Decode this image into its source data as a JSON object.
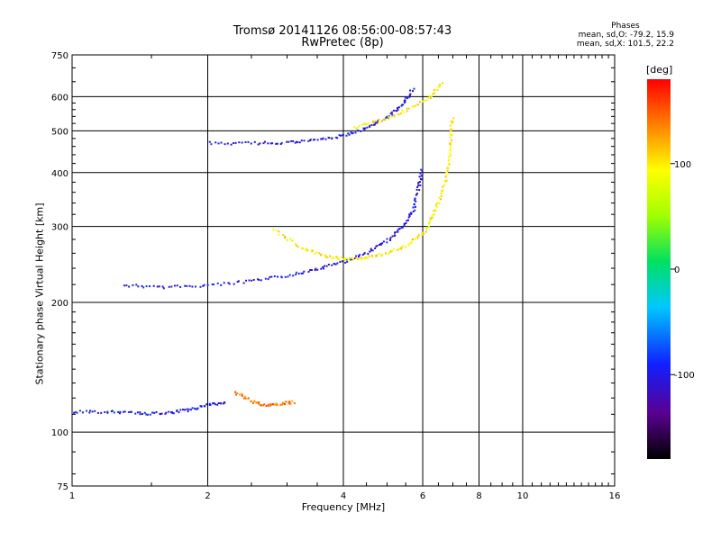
{
  "title_line1": "Tromsø 20141126 08:56:00-08:57:43",
  "title_line2": "RwPretec (8p)",
  "stats": {
    "heading": "Phases",
    "line1": "mean, sd,O: -79.2, 15.9",
    "line2": "mean, sd,X: 101.5, 22.2"
  },
  "chart_data": {
    "type": "scatter",
    "xlabel": "Frequency [MHz]",
    "ylabel": "Stationary phase Virtual Height [km]",
    "xscale": "log",
    "yscale": "log",
    "xlim": [
      1,
      16
    ],
    "ylim": [
      75,
      750
    ],
    "xticks": [
      1,
      2,
      4,
      6,
      8,
      10,
      16
    ],
    "xtick_labels": [
      "1",
      "2",
      "4",
      "6",
      "8",
      "10",
      "16"
    ],
    "yticks": [
      75,
      100,
      200,
      300,
      400,
      500,
      600,
      750
    ],
    "ytick_labels": [
      "75",
      "100",
      "200",
      "300",
      "400",
      "500",
      "600",
      "750"
    ],
    "grid": true,
    "colorbar": {
      "title": "[deg]",
      "range": [
        -180,
        180
      ],
      "ticks": [
        100,
        0,
        -100
      ],
      "tick_labels": [
        "100",
        "0",
        "-100"
      ]
    },
    "traces": [
      {
        "desc": "O-mode F2 trace",
        "phase": -100,
        "x": [
          1.3,
          1.6,
          2.0,
          2.5,
          3.0,
          3.5,
          4.0,
          4.5,
          5.0,
          5.4,
          5.7,
          5.85,
          5.95
        ],
        "y": [
          220,
          218,
          220,
          225,
          232,
          240,
          250,
          262,
          280,
          300,
          330,
          370,
          410
        ]
      },
      {
        "desc": "O-mode F2 second hop",
        "phase": -100,
        "x": [
          2.0,
          2.5,
          3.0,
          3.5,
          4.0,
          4.5,
          5.0,
          5.4,
          5.7
        ],
        "y": [
          470,
          470,
          472,
          478,
          490,
          510,
          540,
          580,
          630
        ]
      },
      {
        "desc": "X-mode F2 trace",
        "phase": 100,
        "x": [
          2.8,
          3.2,
          3.6,
          4.0,
          4.5,
          5.0,
          5.5,
          6.0,
          6.3,
          6.6,
          6.8,
          6.9,
          6.95
        ],
        "y": [
          295,
          270,
          258,
          253,
          255,
          262,
          272,
          290,
          320,
          360,
          410,
          470,
          540
        ]
      },
      {
        "desc": "X-mode second hop",
        "phase": 100,
        "x": [
          4.2,
          4.8,
          5.5,
          6.2,
          6.6
        ],
        "y": [
          510,
          530,
          560,
          600,
          650
        ]
      },
      {
        "desc": "E-layer trace",
        "phase": -100,
        "x": [
          1.0,
          1.2,
          1.4,
          1.6,
          1.8,
          2.0,
          2.2
        ],
        "y": [
          112,
          112,
          111,
          111,
          113,
          116,
          118
        ]
      },
      {
        "desc": "Es X-mode trace",
        "phase": 140,
        "x": [
          2.3,
          2.5,
          2.7,
          2.9,
          3.1
        ],
        "y": [
          124,
          118,
          116,
          117,
          118
        ]
      }
    ]
  }
}
